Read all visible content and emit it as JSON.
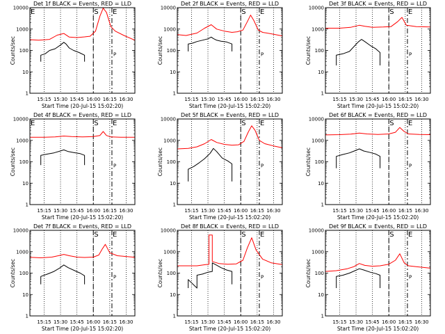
{
  "figure": {
    "xlabel": "Start Time (20-Jul-15 15:02:20)",
    "ylabel": "Counts/sec",
    "x_ticks": [
      "15:15",
      "15:30",
      "15:45",
      "16:00",
      "16:15",
      "16:30"
    ],
    "y_ticks": [
      "1",
      "10",
      "100",
      "1000",
      "10000"
    ],
    "marker_s": "S",
    "marker_e": "E",
    "marker_e_left": "E",
    "marker_p": "P",
    "colors": {
      "events": "#000000",
      "lld": "#ff0000",
      "axes": "#000000"
    }
  },
  "chart_data": [
    {
      "type": "line",
      "title": "Det 1f BLACK = Events, RED = LLD",
      "xlabel": "Start Time (20-Jul-15 15:02:20)",
      "ylabel": "Counts/sec",
      "y_scale": "log",
      "ylim": [
        1,
        10000
      ],
      "x_range": [
        "15:02",
        "16:38"
      ],
      "series": [
        {
          "name": "Events",
          "color": "#000000",
          "x": [
            "15:12",
            "15:12",
            "15:16",
            "15:20",
            "15:25",
            "15:30",
            "15:33",
            "15:35",
            "15:38",
            "15:42",
            "15:47",
            "15:52",
            "15:52"
          ],
          "y": [
            30,
            60,
            70,
            100,
            120,
            180,
            240,
            200,
            130,
            100,
            80,
            60,
            30
          ]
        },
        {
          "name": "LLD",
          "color": "#ff0000",
          "x": [
            "15:02",
            "15:10",
            "15:20",
            "15:27",
            "15:33",
            "15:38",
            "15:45",
            "15:52",
            "15:57",
            "16:02",
            "16:06",
            "16:09",
            "16:12",
            "16:16",
            "16:20",
            "16:28",
            "16:38"
          ],
          "y": [
            320,
            300,
            330,
            520,
            620,
            420,
            400,
            430,
            460,
            800,
            4000,
            9500,
            6000,
            1300,
            800,
            500,
            300
          ]
        }
      ],
      "markers": {
        "E_left": "15:02",
        "S": "16:00",
        "E": "16:17"
      }
    },
    {
      "type": "line",
      "title": "Det 2f BLACK = Events, RED = LLD",
      "xlabel": "Start Time (20-Jul-15 15:02:20)",
      "ylabel": "Counts/sec",
      "y_scale": "log",
      "ylim": [
        1,
        10000
      ],
      "x_range": [
        "15:02",
        "16:38"
      ],
      "series": [
        {
          "name": "Events",
          "color": "#000000",
          "x": [
            "15:12",
            "15:12",
            "15:16",
            "15:20",
            "15:25",
            "15:30",
            "15:33",
            "15:35",
            "15:38",
            "15:42",
            "15:47",
            "15:52",
            "15:52"
          ],
          "y": [
            90,
            200,
            220,
            260,
            300,
            350,
            420,
            360,
            300,
            270,
            250,
            200,
            90
          ]
        },
        {
          "name": "LLD",
          "color": "#ff0000",
          "x": [
            "15:02",
            "15:10",
            "15:20",
            "15:27",
            "15:33",
            "15:38",
            "15:45",
            "15:52",
            "15:57",
            "16:02",
            "16:06",
            "16:09",
            "16:12",
            "16:16",
            "16:20",
            "16:28",
            "16:38"
          ],
          "y": [
            550,
            500,
            650,
            1100,
            1600,
            1000,
            800,
            700,
            750,
            900,
            2200,
            4500,
            2500,
            900,
            700,
            600,
            480
          ]
        }
      ],
      "markers": {
        "S": "16:00",
        "E": "16:17"
      }
    },
    {
      "type": "line",
      "title": "Det 3f BLACK = Events, RED = LLD",
      "xlabel": "Start Time (20-Jul-15 15:02:20)",
      "ylabel": "Counts/sec",
      "y_scale": "log",
      "ylim": [
        1,
        10000
      ],
      "x_range": [
        "15:02",
        "16:38"
      ],
      "series": [
        {
          "name": "Events",
          "color": "#000000",
          "x": [
            "15:12",
            "15:12",
            "15:18",
            "15:24",
            "15:28",
            "15:32",
            "15:35",
            "15:38",
            "15:43",
            "15:48",
            "15:52",
            "15:52"
          ],
          "y": [
            20,
            60,
            70,
            90,
            150,
            250,
            330,
            260,
            170,
            120,
            80,
            20
          ]
        },
        {
          "name": "LLD",
          "color": "#ff0000",
          "x": [
            "15:02",
            "15:15",
            "15:25",
            "15:33",
            "15:38",
            "15:45",
            "15:55",
            "16:02",
            "16:08",
            "16:12",
            "16:16",
            "16:25",
            "16:38"
          ],
          "y": [
            1100,
            1100,
            1200,
            1500,
            1350,
            1200,
            1250,
            1300,
            2200,
            3500,
            1500,
            1300,
            1250
          ]
        }
      ],
      "markers": {
        "S": "16:00",
        "E": "16:17"
      }
    },
    {
      "type": "line",
      "title": "Det 4f BLACK = Events, RED = LLD",
      "xlabel": "Start Time (20-Jul-15 15:02:20)",
      "ylabel": "Counts/sec",
      "y_scale": "log",
      "ylim": [
        1,
        10000
      ],
      "x_range": [
        "15:02",
        "16:38"
      ],
      "series": [
        {
          "name": "Events",
          "color": "#000000",
          "x": [
            "15:12",
            "15:12",
            "15:18",
            "15:24",
            "15:29",
            "15:33",
            "15:37",
            "15:42",
            "15:48",
            "15:52",
            "15:52"
          ],
          "y": [
            70,
            200,
            230,
            260,
            310,
            360,
            300,
            270,
            240,
            200,
            70
          ]
        },
        {
          "name": "LLD",
          "color": "#ff0000",
          "x": [
            "15:02",
            "15:15",
            "15:25",
            "15:33",
            "15:40",
            "15:50",
            "16:00",
            "16:06",
            "16:09",
            "16:12",
            "16:16",
            "16:25",
            "16:38"
          ],
          "y": [
            1400,
            1400,
            1450,
            1600,
            1500,
            1450,
            1500,
            1700,
            2600,
            1700,
            1450,
            1400,
            1400
          ]
        }
      ],
      "markers": {
        "E_left": "15:02",
        "S": "16:00",
        "E": "16:17"
      }
    },
    {
      "type": "line",
      "title": "Det 5f BLACK = Events, RED = LLD",
      "xlabel": "Start Time (20-Jul-15 15:02:20)",
      "ylabel": "Counts/sec",
      "y_scale": "log",
      "ylim": [
        1,
        10000
      ],
      "x_range": [
        "15:02",
        "16:38"
      ],
      "series": [
        {
          "name": "Events",
          "color": "#000000",
          "x": [
            "15:12",
            "15:12",
            "15:17",
            "15:22",
            "15:27",
            "15:32",
            "15:35",
            "15:38",
            "15:43",
            "15:48",
            "15:52",
            "15:52"
          ],
          "y": [
            12,
            45,
            60,
            90,
            140,
            250,
            420,
            300,
            150,
            110,
            80,
            12
          ]
        },
        {
          "name": "LLD",
          "color": "#ff0000",
          "x": [
            "15:02",
            "15:12",
            "15:20",
            "15:27",
            "15:33",
            "15:38",
            "15:45",
            "15:52",
            "15:58",
            "16:03",
            "16:07",
            "16:10",
            "16:13",
            "16:17",
            "16:22",
            "16:30",
            "16:38"
          ],
          "y": [
            400,
            420,
            500,
            700,
            1100,
            800,
            650,
            600,
            620,
            900,
            2500,
            4800,
            3000,
            1000,
            700,
            550,
            450
          ]
        }
      ],
      "markers": {
        "S": "16:00",
        "E": "16:17"
      }
    },
    {
      "type": "line",
      "title": "Det 6f BLACK = Events, RED = LLD",
      "xlabel": "Start Time (20-Jul-15 15:02:20)",
      "ylabel": "Counts/sec",
      "y_scale": "log",
      "ylim": [
        1,
        10000
      ],
      "x_range": [
        "15:02",
        "16:38"
      ],
      "series": [
        {
          "name": "Events",
          "color": "#000000",
          "x": [
            "15:12",
            "15:12",
            "15:18",
            "15:24",
            "15:29",
            "15:33",
            "15:37",
            "15:43",
            "15:48",
            "15:52",
            "15:52"
          ],
          "y": [
            50,
            180,
            220,
            260,
            330,
            400,
            320,
            270,
            230,
            180,
            50
          ]
        },
        {
          "name": "LLD",
          "color": "#ff0000",
          "x": [
            "15:02",
            "15:15",
            "15:25",
            "15:33",
            "15:40",
            "15:50",
            "16:00",
            "16:06",
            "16:10",
            "16:14",
            "16:18",
            "16:28",
            "16:38"
          ],
          "y": [
            1800,
            1850,
            1950,
            2200,
            2000,
            1900,
            2000,
            2400,
            4000,
            2600,
            2000,
            1900,
            1850
          ]
        }
      ],
      "markers": {
        "S": "16:00",
        "E": "16:17"
      }
    },
    {
      "type": "line",
      "title": "Det 7f BLACK = Events, RED = LLD",
      "xlabel": "Start Time (20-Jul-15 15:02:20)",
      "ylabel": "Counts/sec",
      "y_scale": "log",
      "ylim": [
        1,
        10000
      ],
      "x_range": [
        "15:02",
        "16:38"
      ],
      "series": [
        {
          "name": "Events",
          "color": "#000000",
          "x": [
            "15:12",
            "15:12",
            "15:18",
            "15:24",
            "15:29",
            "15:33",
            "15:37",
            "15:43",
            "15:48",
            "15:52",
            "15:52"
          ],
          "y": [
            30,
            70,
            90,
            120,
            170,
            240,
            180,
            130,
            100,
            75,
            30
          ]
        },
        {
          "name": "LLD",
          "color": "#ff0000",
          "x": [
            "15:02",
            "15:12",
            "15:22",
            "15:28",
            "15:33",
            "15:38",
            "15:45",
            "15:52",
            "16:00",
            "16:05",
            "16:08",
            "16:11",
            "16:15",
            "16:22",
            "16:30",
            "16:38"
          ],
          "y": [
            550,
            520,
            560,
            650,
            750,
            650,
            560,
            540,
            560,
            700,
            1300,
            2200,
            900,
            650,
            600,
            550
          ]
        }
      ],
      "markers": {
        "S": "16:00",
        "E": "16:17"
      }
    },
    {
      "type": "line",
      "title": "Det 8f BLACK = Events, RED = LLD",
      "xlabel": "Start Time (20-Jul-15 15:02:20)",
      "ylabel": "Counts/sec",
      "y_scale": "log",
      "ylim": [
        1,
        10000
      ],
      "x_range": [
        "15:02",
        "16:38"
      ],
      "series": [
        {
          "name": "Events",
          "color": "#000000",
          "x": [
            "15:12",
            "15:12",
            "15:20",
            "15:20",
            "15:25",
            "15:30",
            "15:34",
            "15:34",
            "15:37",
            "15:42",
            "15:47",
            "15:52",
            "15:52"
          ],
          "y": [
            20,
            50,
            20,
            80,
            90,
            110,
            120,
            300,
            250,
            180,
            140,
            120,
            30
          ]
        },
        {
          "name": "LLD",
          "color": "#ff0000",
          "x": [
            "15:02",
            "15:20",
            "15:28",
            "15:31",
            "15:31",
            "15:34",
            "15:34",
            "15:40",
            "15:48",
            "15:56",
            "16:02",
            "16:06",
            "16:10",
            "16:14",
            "16:20",
            "16:28",
            "16:38"
          ],
          "y": [
            220,
            220,
            250,
            260,
            6000,
            6000,
            350,
            280,
            260,
            270,
            400,
            1500,
            4500,
            1200,
            450,
            300,
            250
          ]
        }
      ],
      "markers": {
        "S": "16:00",
        "E": "16:17"
      }
    },
    {
      "type": "line",
      "title": "Det 9f BLACK = Events, RED = LLD",
      "xlabel": "Start Time (20-Jul-15 15:02:20)",
      "ylabel": "Counts/sec",
      "y_scale": "log",
      "ylim": [
        1,
        10000
      ],
      "x_range": [
        "15:02",
        "16:38"
      ],
      "series": [
        {
          "name": "Events",
          "color": "#000000",
          "x": [
            "15:12",
            "15:12",
            "15:18",
            "15:24",
            "15:29",
            "15:33",
            "15:37",
            "15:43",
            "15:48",
            "15:52",
            "15:52"
          ],
          "y": [
            20,
            70,
            80,
            100,
            130,
            160,
            140,
            110,
            95,
            80,
            20
          ]
        },
        {
          "name": "LLD",
          "color": "#ff0000",
          "x": [
            "15:02",
            "15:12",
            "15:22",
            "15:28",
            "15:33",
            "15:38",
            "15:45",
            "15:52",
            "16:00",
            "16:06",
            "16:10",
            "16:14",
            "16:18",
            "16:25",
            "16:38"
          ],
          "y": [
            120,
            130,
            160,
            200,
            280,
            230,
            210,
            220,
            260,
            400,
            800,
            300,
            220,
            200,
            170
          ]
        }
      ],
      "markers": {
        "S": "16:00",
        "E": "16:17"
      }
    }
  ]
}
